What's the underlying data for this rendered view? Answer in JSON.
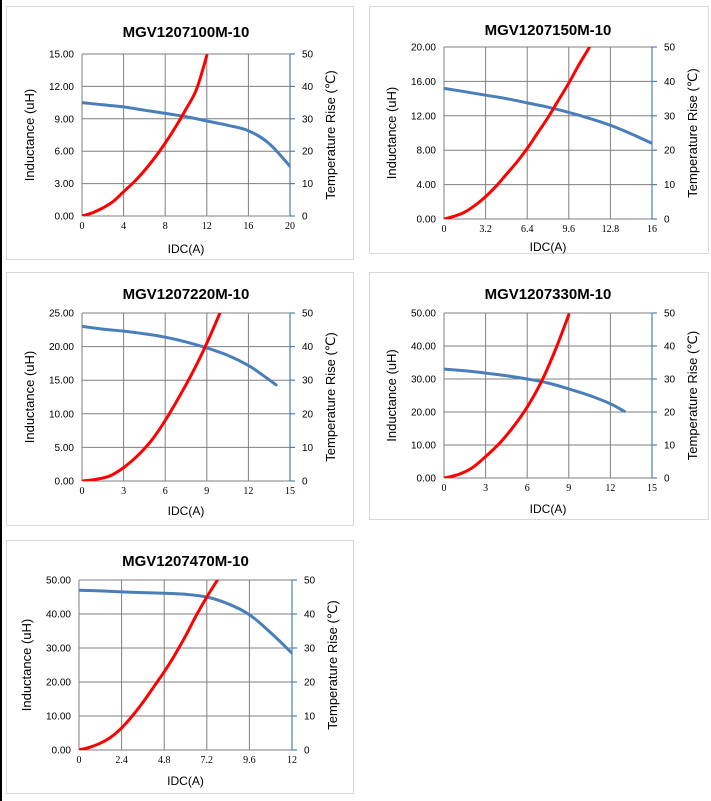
{
  "chart_data": [
    {
      "type": "line",
      "title": "MGV1207100M-10",
      "xlabel": "IDC(A)",
      "ylabel": "Inductance (uH)",
      "y2label": "Temperature Rise (℃)",
      "xlim": [
        0,
        20
      ],
      "ylim": [
        0,
        15
      ],
      "y2lim": [
        0,
        50
      ],
      "x_ticks": [
        "0",
        "4",
        "8",
        "12",
        "16",
        "20"
      ],
      "y_ticks": [
        "0.00",
        "3.00",
        "6.00",
        "9.00",
        "12.00",
        "15.00"
      ],
      "y2_ticks": [
        "0",
        "10",
        "20",
        "30",
        "40",
        "50"
      ],
      "series": [
        {
          "name": "Inductance",
          "axis": "left",
          "color": "#4a7ebb",
          "x": [
            0,
            2,
            4,
            6,
            8,
            10,
            12,
            14,
            16,
            18,
            20
          ],
          "y": [
            10.5,
            10.3,
            10.1,
            9.8,
            9.5,
            9.2,
            8.8,
            8.4,
            7.9,
            6.7,
            4.6
          ]
        },
        {
          "name": "Temperature Rise",
          "axis": "right",
          "color": "#ff0000",
          "x": [
            0,
            1,
            2,
            3,
            4,
            5,
            6,
            7,
            8,
            9,
            10,
            11,
            12
          ],
          "y": [
            0,
            1,
            2.5,
            4.5,
            7.5,
            10.5,
            14,
            18,
            22.5,
            27.5,
            33,
            39,
            49.5
          ]
        }
      ]
    },
    {
      "type": "line",
      "title": "MGV1207150M-10",
      "xlabel": "IDC(A)",
      "ylabel": "Inductance (uH)",
      "y2label": "Temperature Rise (℃)",
      "xlim": [
        0,
        16
      ],
      "ylim": [
        0,
        20
      ],
      "y2lim": [
        0,
        50
      ],
      "x_ticks": [
        "0",
        "3.2",
        "6.4",
        "9.6",
        "12.8",
        "16"
      ],
      "y_ticks": [
        "0.00",
        "4.00",
        "8.00",
        "12.00",
        "16.00",
        "20.00"
      ],
      "y2_ticks": [
        "0",
        "10",
        "20",
        "30",
        "40",
        "50"
      ],
      "series": [
        {
          "name": "Inductance",
          "axis": "left",
          "color": "#4a7ebb",
          "x": [
            0,
            1.6,
            3.2,
            4.8,
            6.4,
            8,
            9.6,
            11.2,
            12.8,
            14.4,
            16
          ],
          "y": [
            15.2,
            14.8,
            14.4,
            14.0,
            13.5,
            13.0,
            12.4,
            11.7,
            10.9,
            9.9,
            8.8
          ]
        },
        {
          "name": "Temperature Rise",
          "axis": "right",
          "color": "#ff0000",
          "x": [
            0,
            0.8,
            1.6,
            2.4,
            3.2,
            4,
            4.8,
            5.6,
            6.4,
            7.2,
            8,
            8.8,
            9.6,
            10.4,
            11.2
          ],
          "y": [
            0,
            0.8,
            2,
            4,
            6.5,
            9.5,
            13,
            16.5,
            20.5,
            25,
            29.5,
            34.5,
            39.5,
            45,
            50
          ]
        }
      ]
    },
    {
      "type": "line",
      "title": "MGV1207220M-10",
      "xlabel": "IDC(A)",
      "ylabel": "Inductance (uH)",
      "y2label": "Temperature Rise (℃)",
      "xlim": [
        0,
        15
      ],
      "ylim": [
        0,
        25
      ],
      "y2lim": [
        0,
        50
      ],
      "x_ticks": [
        "0",
        "3",
        "6",
        "9",
        "12",
        "15"
      ],
      "y_ticks": [
        "0.00",
        "5.00",
        "10.00",
        "15.00",
        "20.00",
        "25.00"
      ],
      "y2_ticks": [
        "0",
        "10",
        "20",
        "30",
        "40",
        "50"
      ],
      "series": [
        {
          "name": "Inductance",
          "axis": "left",
          "color": "#4a7ebb",
          "x": [
            0,
            1.5,
            3,
            4.5,
            6,
            7.5,
            9,
            10.5,
            12,
            13,
            14
          ],
          "y": [
            23.0,
            22.6,
            22.3,
            21.9,
            21.4,
            20.7,
            19.8,
            18.7,
            17.2,
            15.8,
            14.3
          ]
        },
        {
          "name": "Temperature Rise",
          "axis": "right",
          "color": "#ff0000",
          "x": [
            0,
            1,
            2,
            3,
            4,
            5,
            6,
            7,
            8,
            9,
            10
          ],
          "y": [
            0,
            0.5,
            1.5,
            4,
            7.5,
            12,
            18,
            25,
            32.5,
            41,
            50.5
          ]
        }
      ]
    },
    {
      "type": "line",
      "title": "MGV1207330M-10",
      "xlabel": "IDC(A)",
      "ylabel": "Inductance (uH)",
      "y2label": "Temperature Rise (℃)",
      "xlim": [
        0,
        15
      ],
      "ylim": [
        0,
        50
      ],
      "y2lim": [
        0,
        50
      ],
      "x_ticks": [
        "0",
        "3",
        "6",
        "9",
        "12",
        "15"
      ],
      "y_ticks": [
        "0.00",
        "10.00",
        "20.00",
        "30.00",
        "40.00",
        "50.00"
      ],
      "y2_ticks": [
        "0",
        "10",
        "20",
        "30",
        "40",
        "50"
      ],
      "series": [
        {
          "name": "Inductance",
          "axis": "left",
          "color": "#4a7ebb",
          "x": [
            0,
            1.5,
            3,
            4.5,
            6,
            7.5,
            9,
            10.5,
            12,
            13
          ],
          "y": [
            33.0,
            32.5,
            31.8,
            31.0,
            30.0,
            28.8,
            27.0,
            25.0,
            22.5,
            20.2
          ]
        },
        {
          "name": "Temperature Rise",
          "axis": "right",
          "color": "#ff0000",
          "x": [
            0,
            1,
            2,
            3,
            4,
            5,
            6,
            7,
            8,
            9
          ],
          "y": [
            0,
            1,
            3,
            6.5,
            10.5,
            15.5,
            21.5,
            29,
            38.5,
            49.5
          ]
        }
      ]
    },
    {
      "type": "line",
      "title": "MGV1207470M-10",
      "xlabel": "IDC(A)",
      "ylabel": "Inductance (uH)",
      "y2label": "Temperature Rise (℃)",
      "xlim": [
        0,
        12
      ],
      "ylim": [
        0,
        50
      ],
      "y2lim": [
        0,
        50
      ],
      "x_ticks": [
        "0",
        "2.4",
        "4.8",
        "7.2",
        "9.6",
        "12"
      ],
      "y_ticks": [
        "0.00",
        "10.00",
        "20.00",
        "30.00",
        "40.00",
        "50.00"
      ],
      "y2_ticks": [
        "0",
        "10",
        "20",
        "30",
        "40",
        "50"
      ],
      "series": [
        {
          "name": "Inductance",
          "axis": "left",
          "color": "#4a7ebb",
          "x": [
            0,
            1.2,
            2.4,
            3.6,
            4.8,
            6,
            7.2,
            8.4,
            9.6,
            10.8,
            12
          ],
          "y": [
            47.0,
            46.8,
            46.5,
            46.3,
            46.1,
            45.8,
            45.0,
            43.0,
            39.8,
            34.5,
            28.5
          ]
        },
        {
          "name": "Temperature Rise",
          "axis": "right",
          "color": "#ff0000",
          "x": [
            0,
            0.6,
            1.2,
            1.8,
            2.4,
            3,
            3.6,
            4.2,
            4.8,
            5.4,
            6,
            6.6,
            7.2,
            7.8
          ],
          "y": [
            0,
            0.8,
            2,
            3.8,
            6.5,
            10,
            14,
            18.5,
            23,
            28,
            33.5,
            39.5,
            45,
            50
          ]
        }
      ]
    }
  ]
}
